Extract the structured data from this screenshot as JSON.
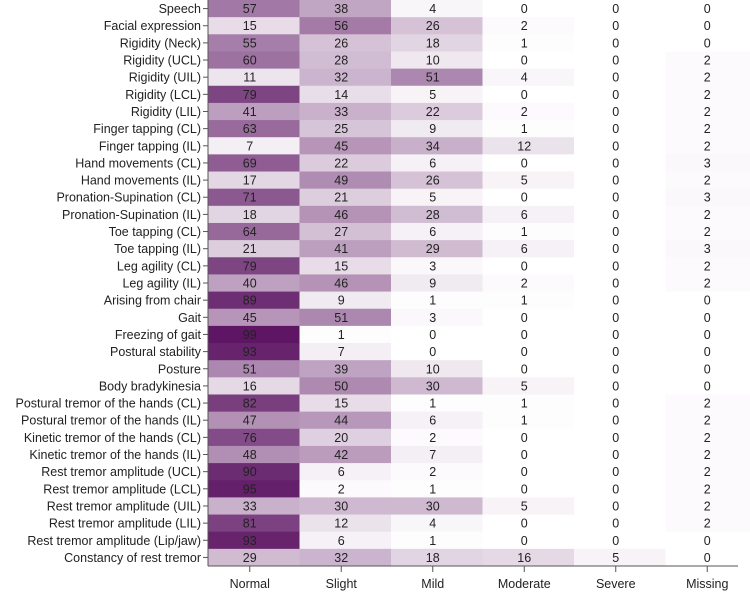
{
  "chart_data": {
    "type": "heatmap",
    "title": "",
    "xlabel": "",
    "ylabel": "",
    "columns": [
      "Normal",
      "Slight",
      "Mild",
      "Moderate",
      "Severe",
      "Missing"
    ],
    "rows": [
      {
        "label": "Speech",
        "values": [
          57,
          38,
          4,
          0,
          0,
          0
        ]
      },
      {
        "label": "Facial expression",
        "values": [
          15,
          56,
          26,
          2,
          0,
          0
        ]
      },
      {
        "label": "Rigidity (Neck)",
        "values": [
          55,
          26,
          18,
          1,
          0,
          0
        ]
      },
      {
        "label": "Rigidity (UCL)",
        "values": [
          60,
          28,
          10,
          0,
          0,
          2
        ]
      },
      {
        "label": "Rigidity (UIL)",
        "values": [
          11,
          32,
          51,
          4,
          0,
          2
        ]
      },
      {
        "label": "Rigidity (LCL)",
        "values": [
          79,
          14,
          5,
          0,
          0,
          2
        ]
      },
      {
        "label": "Rigidity (LIL)",
        "values": [
          41,
          33,
          22,
          2,
          0,
          2
        ]
      },
      {
        "label": "Finger tapping (CL)",
        "values": [
          63,
          25,
          9,
          1,
          0,
          2
        ]
      },
      {
        "label": "Finger tapping (IL)",
        "values": [
          7,
          45,
          34,
          12,
          0,
          2
        ]
      },
      {
        "label": "Hand movements (CL)",
        "values": [
          69,
          22,
          6,
          0,
          0,
          3
        ]
      },
      {
        "label": "Hand movements (IL)",
        "values": [
          17,
          49,
          26,
          5,
          0,
          2
        ]
      },
      {
        "label": "Pronation-Supination (CL)",
        "values": [
          71,
          21,
          5,
          0,
          0,
          3
        ]
      },
      {
        "label": "Pronation-Supination (IL)",
        "values": [
          18,
          46,
          28,
          6,
          0,
          2
        ]
      },
      {
        "label": "Toe tapping (CL)",
        "values": [
          64,
          27,
          6,
          1,
          0,
          2
        ]
      },
      {
        "label": "Toe tapping (IL)",
        "values": [
          21,
          41,
          29,
          6,
          0,
          3
        ]
      },
      {
        "label": "Leg agility (CL)",
        "values": [
          79,
          15,
          3,
          0,
          0,
          2
        ]
      },
      {
        "label": "Leg agility (IL)",
        "values": [
          40,
          46,
          9,
          2,
          0,
          2
        ]
      },
      {
        "label": "Arising from chair",
        "values": [
          89,
          9,
          1,
          1,
          0,
          0
        ]
      },
      {
        "label": "Gait",
        "values": [
          45,
          51,
          3,
          0,
          0,
          0
        ]
      },
      {
        "label": "Freezing of gait",
        "values": [
          99,
          1,
          0,
          0,
          0,
          0
        ]
      },
      {
        "label": "Postural stability",
        "values": [
          93,
          7,
          0,
          0,
          0,
          0
        ]
      },
      {
        "label": "Posture",
        "values": [
          51,
          39,
          10,
          0,
          0,
          0
        ]
      },
      {
        "label": "Body bradykinesia",
        "values": [
          16,
          50,
          30,
          5,
          0,
          0
        ]
      },
      {
        "label": "Postural tremor of the hands (CL)",
        "values": [
          82,
          15,
          1,
          1,
          0,
          2
        ]
      },
      {
        "label": "Postural tremor of the hands (IL)",
        "values": [
          47,
          44,
          6,
          1,
          0,
          2
        ]
      },
      {
        "label": "Kinetic tremor of the hands (CL)",
        "values": [
          76,
          20,
          2,
          0,
          0,
          2
        ]
      },
      {
        "label": "Kinetic tremor of the hands (IL)",
        "values": [
          48,
          42,
          7,
          0,
          0,
          2
        ]
      },
      {
        "label": "Rest tremor amplitude (UCL)",
        "values": [
          90,
          6,
          2,
          0,
          0,
          2
        ]
      },
      {
        "label": "Rest tremor amplitude (LCL)",
        "values": [
          95,
          2,
          1,
          0,
          0,
          2
        ]
      },
      {
        "label": "Rest tremor amplitude (UIL)",
        "values": [
          33,
          30,
          30,
          5,
          0,
          2
        ]
      },
      {
        "label": "Rest tremor amplitude (LIL)",
        "values": [
          81,
          12,
          4,
          0,
          0,
          2
        ]
      },
      {
        "label": "Rest tremor amplitude (Lip/jaw)",
        "values": [
          93,
          6,
          1,
          0,
          0,
          0
        ]
      },
      {
        "label": "Constancy of rest tremor",
        "values": [
          29,
          32,
          18,
          16,
          5,
          0
        ]
      }
    ],
    "value_range": [
      0,
      100
    ],
    "color_low": "#ffffff",
    "color_high": "#5c1462"
  }
}
